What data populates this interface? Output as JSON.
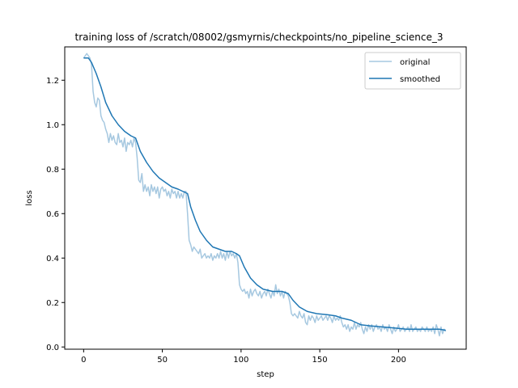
{
  "chart_data": {
    "type": "line",
    "title": "training loss of /scratch/08002/gsmyrnis/checkpoints/no_pipeline_science_3",
    "xlabel": "step",
    "ylabel": "loss",
    "xlim": [
      -12,
      243
    ],
    "ylim": [
      -0.01,
      1.35
    ],
    "xticks": [
      0,
      50,
      100,
      150,
      200
    ],
    "yticks": [
      0.0,
      0.2,
      0.4,
      0.6,
      0.8,
      1.0,
      1.2
    ],
    "ytick_labels": [
      "0.0",
      "0.2",
      "0.4",
      "0.6",
      "0.8",
      "1.0",
      "1.2"
    ],
    "legend_position": "upper right",
    "grid": false,
    "series": [
      {
        "name": "original",
        "color": "#a6c8e0",
        "points": [
          [
            0,
            1.3
          ],
          [
            1,
            1.31
          ],
          [
            2,
            1.32
          ],
          [
            3,
            1.31
          ],
          [
            4,
            1.3
          ],
          [
            5,
            1.27
          ],
          [
            6,
            1.15
          ],
          [
            7,
            1.1
          ],
          [
            8,
            1.08
          ],
          [
            9,
            1.12
          ],
          [
            10,
            1.11
          ],
          [
            11,
            1.04
          ],
          [
            12,
            1.02
          ],
          [
            13,
            1.01
          ],
          [
            14,
            0.98
          ],
          [
            15,
            0.96
          ],
          [
            16,
            0.92
          ],
          [
            17,
            0.96
          ],
          [
            18,
            0.93
          ],
          [
            19,
            0.95
          ],
          [
            20,
            0.92
          ],
          [
            21,
            0.91
          ],
          [
            22,
            0.96
          ],
          [
            23,
            0.92
          ],
          [
            24,
            0.93
          ],
          [
            25,
            0.9
          ],
          [
            26,
            0.94
          ],
          [
            27,
            0.88
          ],
          [
            28,
            0.92
          ],
          [
            29,
            0.91
          ],
          [
            30,
            0.93
          ],
          [
            31,
            0.9
          ],
          [
            32,
            0.94
          ],
          [
            33,
            0.92
          ],
          [
            34,
            0.85
          ],
          [
            35,
            0.75
          ],
          [
            36,
            0.74
          ],
          [
            37,
            0.78
          ],
          [
            38,
            0.7
          ],
          [
            39,
            0.73
          ],
          [
            40,
            0.7
          ],
          [
            41,
            0.72
          ],
          [
            42,
            0.68
          ],
          [
            43,
            0.73
          ],
          [
            44,
            0.7
          ],
          [
            45,
            0.72
          ],
          [
            46,
            0.69
          ],
          [
            47,
            0.72
          ],
          [
            48,
            0.67
          ],
          [
            49,
            0.71
          ],
          [
            50,
            0.72
          ],
          [
            51,
            0.7
          ],
          [
            52,
            0.71
          ],
          [
            53,
            0.68
          ],
          [
            54,
            0.7
          ],
          [
            55,
            0.67
          ],
          [
            56,
            0.71
          ],
          [
            57,
            0.69
          ],
          [
            58,
            0.7
          ],
          [
            59,
            0.67
          ],
          [
            60,
            0.7
          ],
          [
            61,
            0.67
          ],
          [
            62,
            0.69
          ],
          [
            63,
            0.67
          ],
          [
            64,
            0.7
          ],
          [
            65,
            0.7
          ],
          [
            66,
            0.6
          ],
          [
            67,
            0.48
          ],
          [
            68,
            0.46
          ],
          [
            69,
            0.43
          ],
          [
            70,
            0.45
          ],
          [
            71,
            0.44
          ],
          [
            72,
            0.43
          ],
          [
            73,
            0.42
          ],
          [
            74,
            0.44
          ],
          [
            75,
            0.4
          ],
          [
            76,
            0.41
          ],
          [
            77,
            0.42
          ],
          [
            78,
            0.4
          ],
          [
            79,
            0.41
          ],
          [
            80,
            0.4
          ],
          [
            81,
            0.42
          ],
          [
            82,
            0.39
          ],
          [
            83,
            0.41
          ],
          [
            84,
            0.4
          ],
          [
            85,
            0.42
          ],
          [
            86,
            0.4
          ],
          [
            87,
            0.43
          ],
          [
            88,
            0.4
          ],
          [
            89,
            0.42
          ],
          [
            90,
            0.39
          ],
          [
            91,
            0.43
          ],
          [
            92,
            0.4
          ],
          [
            93,
            0.43
          ],
          [
            94,
            0.41
          ],
          [
            95,
            0.42
          ],
          [
            96,
            0.4
          ],
          [
            97,
            0.42
          ],
          [
            98,
            0.38
          ],
          [
            99,
            0.28
          ],
          [
            100,
            0.26
          ],
          [
            101,
            0.25
          ],
          [
            102,
            0.26
          ],
          [
            103,
            0.24
          ],
          [
            104,
            0.25
          ],
          [
            105,
            0.22
          ],
          [
            106,
            0.26
          ],
          [
            107,
            0.23
          ],
          [
            108,
            0.25
          ],
          [
            109,
            0.26
          ],
          [
            110,
            0.24
          ],
          [
            111,
            0.23
          ],
          [
            112,
            0.25
          ],
          [
            113,
            0.22
          ],
          [
            114,
            0.24
          ],
          [
            115,
            0.25
          ],
          [
            116,
            0.23
          ],
          [
            117,
            0.26
          ],
          [
            118,
            0.24
          ],
          [
            119,
            0.22
          ],
          [
            120,
            0.25
          ],
          [
            121,
            0.23
          ],
          [
            122,
            0.28
          ],
          [
            123,
            0.24
          ],
          [
            124,
            0.26
          ],
          [
            125,
            0.23
          ],
          [
            126,
            0.25
          ],
          [
            127,
            0.22
          ],
          [
            128,
            0.25
          ],
          [
            129,
            0.24
          ],
          [
            130,
            0.23
          ],
          [
            131,
            0.2
          ],
          [
            132,
            0.15
          ],
          [
            133,
            0.14
          ],
          [
            134,
            0.15
          ],
          [
            135,
            0.14
          ],
          [
            136,
            0.13
          ],
          [
            137,
            0.16
          ],
          [
            138,
            0.14
          ],
          [
            139,
            0.13
          ],
          [
            140,
            0.15
          ],
          [
            141,
            0.11
          ],
          [
            142,
            0.1
          ],
          [
            143,
            0.14
          ],
          [
            144,
            0.12
          ],
          [
            145,
            0.14
          ],
          [
            146,
            0.13
          ],
          [
            147,
            0.11
          ],
          [
            148,
            0.14
          ],
          [
            149,
            0.12
          ],
          [
            150,
            0.13
          ],
          [
            151,
            0.14
          ],
          [
            152,
            0.12
          ],
          [
            153,
            0.13
          ],
          [
            154,
            0.14
          ],
          [
            155,
            0.12
          ],
          [
            156,
            0.14
          ],
          [
            157,
            0.13
          ],
          [
            158,
            0.11
          ],
          [
            159,
            0.14
          ],
          [
            160,
            0.12
          ],
          [
            161,
            0.13
          ],
          [
            162,
            0.12
          ],
          [
            163,
            0.14
          ],
          [
            164,
            0.11
          ],
          [
            165,
            0.09
          ],
          [
            166,
            0.1
          ],
          [
            167,
            0.08
          ],
          [
            168,
            0.1
          ],
          [
            169,
            0.07
          ],
          [
            170,
            0.09
          ],
          [
            171,
            0.08
          ],
          [
            172,
            0.11
          ],
          [
            173,
            0.08
          ],
          [
            174,
            0.1
          ],
          [
            175,
            0.09
          ],
          [
            176,
            0.11
          ],
          [
            177,
            0.08
          ],
          [
            178,
            0.06
          ],
          [
            179,
            0.09
          ],
          [
            180,
            0.07
          ],
          [
            181,
            0.1
          ],
          [
            182,
            0.08
          ],
          [
            183,
            0.1
          ],
          [
            184,
            0.07
          ],
          [
            185,
            0.09
          ],
          [
            186,
            0.1
          ],
          [
            187,
            0.08
          ],
          [
            188,
            0.09
          ],
          [
            189,
            0.07
          ],
          [
            190,
            0.1
          ],
          [
            191,
            0.08
          ],
          [
            192,
            0.09
          ],
          [
            193,
            0.07
          ],
          [
            194,
            0.1
          ],
          [
            195,
            0.08
          ],
          [
            196,
            0.06
          ],
          [
            197,
            0.09
          ],
          [
            198,
            0.07
          ],
          [
            199,
            0.08
          ],
          [
            200,
            0.1
          ],
          [
            201,
            0.07
          ],
          [
            202,
            0.08
          ],
          [
            203,
            0.09
          ],
          [
            204,
            0.07
          ],
          [
            205,
            0.08
          ],
          [
            206,
            0.09
          ],
          [
            207,
            0.07
          ],
          [
            208,
            0.1
          ],
          [
            209,
            0.07
          ],
          [
            210,
            0.08
          ],
          [
            211,
            0.09
          ],
          [
            212,
            0.07
          ],
          [
            213,
            0.08
          ],
          [
            214,
            0.07
          ],
          [
            215,
            0.09
          ],
          [
            216,
            0.08
          ],
          [
            217,
            0.07
          ],
          [
            218,
            0.09
          ],
          [
            219,
            0.07
          ],
          [
            220,
            0.08
          ],
          [
            221,
            0.07
          ],
          [
            222,
            0.09
          ],
          [
            223,
            0.06
          ],
          [
            224,
            0.1
          ],
          [
            225,
            0.08
          ],
          [
            226,
            0.05
          ],
          [
            227,
            0.09
          ],
          [
            228,
            0.06
          ],
          [
            229,
            0.08
          ],
          [
            230,
            0.07
          ]
        ]
      },
      {
        "name": "smoothed",
        "color": "#1f77b4",
        "points": [
          [
            0,
            1.3
          ],
          [
            3,
            1.3
          ],
          [
            5,
            1.28
          ],
          [
            8,
            1.23
          ],
          [
            11,
            1.17
          ],
          [
            14,
            1.1
          ],
          [
            18,
            1.04
          ],
          [
            22,
            1.0
          ],
          [
            26,
            0.97
          ],
          [
            30,
            0.95
          ],
          [
            33,
            0.94
          ],
          [
            36,
            0.88
          ],
          [
            40,
            0.83
          ],
          [
            44,
            0.79
          ],
          [
            48,
            0.76
          ],
          [
            52,
            0.74
          ],
          [
            56,
            0.72
          ],
          [
            60,
            0.71
          ],
          [
            63,
            0.7
          ],
          [
            66,
            0.69
          ],
          [
            68,
            0.63
          ],
          [
            71,
            0.57
          ],
          [
            74,
            0.52
          ],
          [
            78,
            0.48
          ],
          [
            82,
            0.45
          ],
          [
            86,
            0.44
          ],
          [
            90,
            0.43
          ],
          [
            94,
            0.43
          ],
          [
            97,
            0.42
          ],
          [
            99,
            0.41
          ],
          [
            102,
            0.36
          ],
          [
            106,
            0.31
          ],
          [
            110,
            0.28
          ],
          [
            114,
            0.26
          ],
          [
            120,
            0.25
          ],
          [
            126,
            0.25
          ],
          [
            130,
            0.24
          ],
          [
            133,
            0.21
          ],
          [
            137,
            0.18
          ],
          [
            142,
            0.16
          ],
          [
            148,
            0.15
          ],
          [
            155,
            0.145
          ],
          [
            160,
            0.14
          ],
          [
            164,
            0.13
          ],
          [
            170,
            0.12
          ],
          [
            176,
            0.1
          ],
          [
            182,
            0.095
          ],
          [
            190,
            0.09
          ],
          [
            198,
            0.085
          ],
          [
            205,
            0.08
          ],
          [
            212,
            0.08
          ],
          [
            220,
            0.08
          ],
          [
            226,
            0.08
          ],
          [
            230,
            0.075
          ]
        ]
      }
    ]
  }
}
